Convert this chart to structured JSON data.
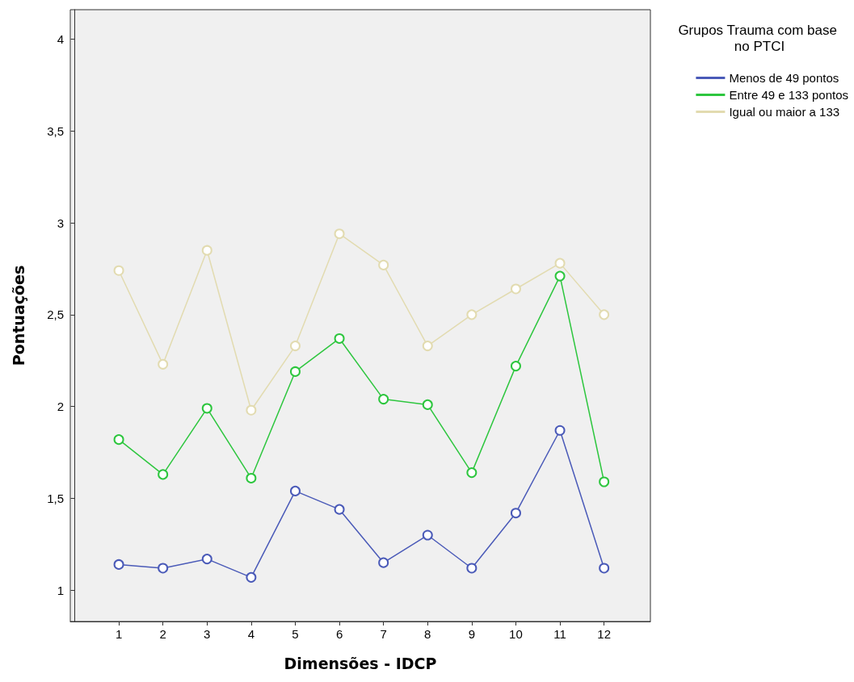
{
  "chart_data": {
    "type": "line",
    "xlabel": "Dimensões - IDCP",
    "ylabel": "Pontuações",
    "legend_title": "Grupos Trauma com base no PTCI",
    "x": [
      1,
      2,
      3,
      4,
      5,
      6,
      7,
      8,
      9,
      10,
      11,
      12
    ],
    "series": [
      {
        "name": "Menos de 49 pontos",
        "color": "#4a5ab8",
        "values": [
          1.14,
          1.12,
          1.17,
          1.07,
          1.54,
          1.44,
          1.15,
          1.3,
          1.12,
          1.42,
          1.87,
          1.12
        ]
      },
      {
        "name": "Entre 49 e 133 pontos",
        "color": "#2dc63e",
        "values": [
          1.82,
          1.63,
          1.99,
          1.61,
          2.19,
          2.37,
          2.04,
          2.01,
          1.64,
          2.22,
          2.71,
          1.59
        ]
      },
      {
        "name": "Igual ou maior a 133",
        "color": "#e2dbb0",
        "values": [
          2.74,
          2.23,
          2.85,
          1.98,
          2.33,
          2.94,
          2.77,
          2.33,
          2.5,
          2.64,
          2.78,
          2.5
        ]
      }
    ],
    "xlim": [
      -0.1,
      13.05
    ],
    "xticks": [
      1,
      2,
      3,
      4,
      5,
      6,
      7,
      8,
      9,
      10,
      11,
      12
    ],
    "ylim": [
      0.83,
      4.16
    ],
    "yticks": [
      1,
      {
        "value": 1.5,
        "label": "1,5"
      },
      2,
      {
        "value": 2.5,
        "label": "2,5"
      },
      3,
      {
        "value": 3.5,
        "label": "3,5"
      },
      4
    ],
    "grid": false,
    "legend": "top right",
    "marker": "circle",
    "line_style": "solid"
  }
}
